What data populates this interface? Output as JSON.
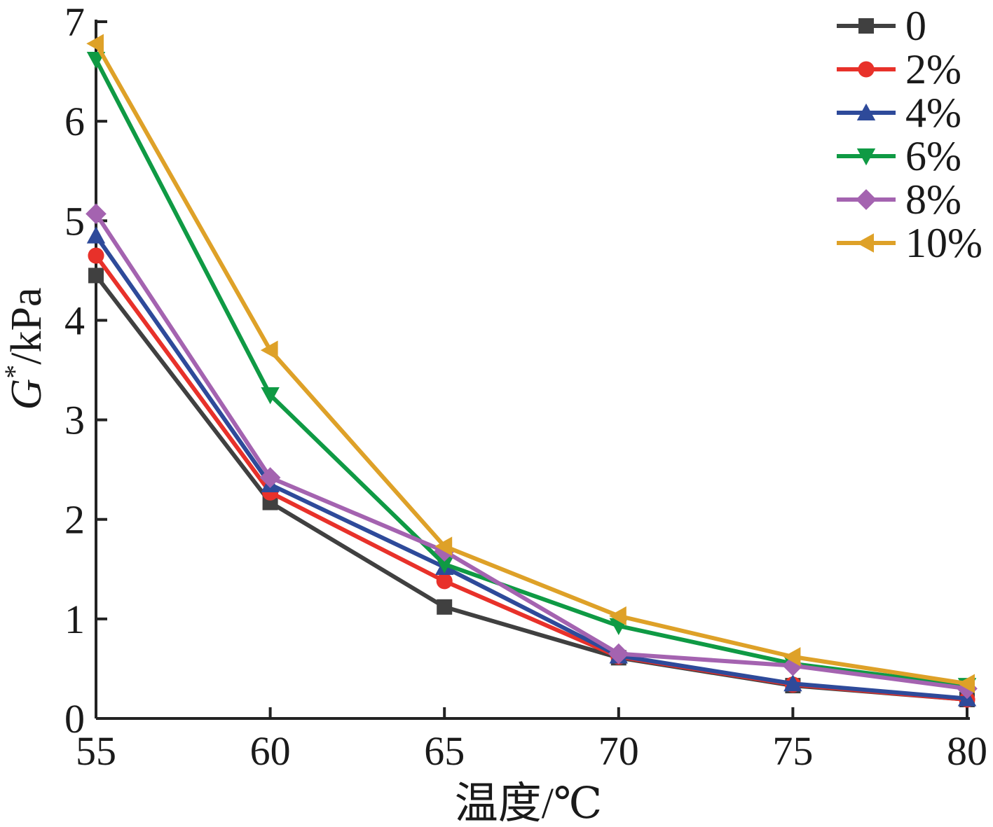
{
  "chart_data": {
    "type": "line",
    "xlabel": "温度/℃",
    "ylabel": {
      "italic": "G",
      "sup": "*",
      "rest": "/kPa"
    },
    "x": [
      55,
      60,
      65,
      70,
      75,
      80
    ],
    "xlim": [
      55,
      80
    ],
    "ylim": [
      0,
      7
    ],
    "xticks": [
      55,
      60,
      65,
      70,
      75,
      80
    ],
    "yticks": [
      0,
      1,
      2,
      3,
      4,
      5,
      6,
      7
    ],
    "grid": false,
    "legend_position": "top-right",
    "series": [
      {
        "name": "0",
        "color": "#404040",
        "marker": "square",
        "values": [
          4.45,
          2.17,
          1.12,
          0.61,
          0.33,
          0.19
        ]
      },
      {
        "name": "2%",
        "color": "#e8312a",
        "marker": "circle",
        "values": [
          4.65,
          2.27,
          1.38,
          0.62,
          0.34,
          0.19
        ]
      },
      {
        "name": "4%",
        "color": "#2e4a9a",
        "marker": "triangle-up",
        "values": [
          4.85,
          2.35,
          1.52,
          0.63,
          0.35,
          0.2
        ]
      },
      {
        "name": "6%",
        "color": "#0f9a44",
        "marker": "triangle-down",
        "values": [
          6.62,
          3.25,
          1.55,
          0.93,
          0.55,
          0.33
        ]
      },
      {
        "name": "8%",
        "color": "#a463b0",
        "marker": "diamond",
        "values": [
          5.07,
          2.42,
          1.68,
          0.65,
          0.53,
          0.3
        ]
      },
      {
        "name": "10%",
        "color": "#dea128",
        "marker": "triangle-left",
        "values": [
          6.78,
          3.7,
          1.73,
          1.03,
          0.62,
          0.35
        ]
      }
    ]
  }
}
